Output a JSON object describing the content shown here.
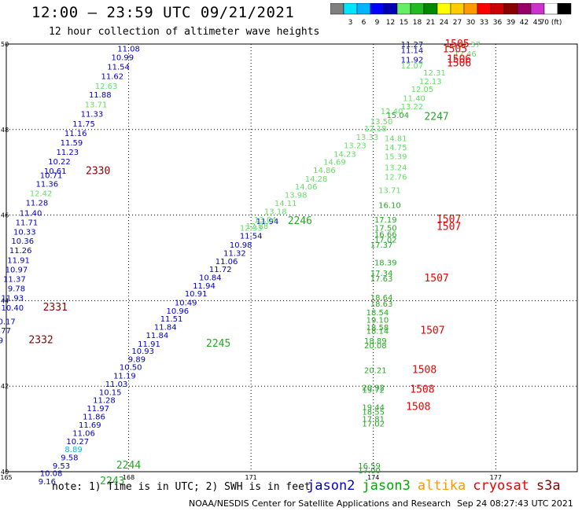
{
  "title": "12:00 – 23:59 UTC 09/21/2021",
  "subtitle": "12 hour collection of altimeter wave heights",
  "scale": {
    "colors": [
      "#7f7f7f",
      "#00e5ff",
      "#00b4ff",
      "#0000ff",
      "#0000b0",
      "#66ee66",
      "#22bb22",
      "#008800",
      "#ffff00",
      "#ffcc00",
      "#ff9900",
      "#ff0000",
      "#cc0000",
      "#880000",
      "#990066",
      "#cc33cc",
      "#ffffff",
      "#000000"
    ],
    "labels": [
      "3",
      "6",
      "9",
      "12",
      "15",
      "18",
      "21",
      "24",
      "27",
      "30",
      "33",
      "36",
      "39",
      "42",
      "45",
      "70 (ft)"
    ]
  },
  "map": {
    "lon_range": [
      165,
      179
    ],
    "lat_range": [
      40,
      50
    ],
    "lon_ticks": [
      "165",
      "168",
      "171",
      "174",
      "177"
    ],
    "lat_ticks": [
      "50",
      "48",
      "46",
      "44",
      "42",
      "40"
    ],
    "grid": "dotted"
  },
  "satellite_colors": {
    "jason2": "#0000cc",
    "jason3_light": "#66dd66",
    "jason3": "#22aa22",
    "jason3_dark": "#008800",
    "cryosat": "#ee0000",
    "s3a": "#880000",
    "cyan": "#00bbdd"
  },
  "observations": [
    {
      "text": "11.08",
      "lon": 168.0,
      "lat": 49.9,
      "c": "jason2"
    },
    {
      "text": "10.99",
      "lon": 167.85,
      "lat": 49.7,
      "c": "jason2"
    },
    {
      "text": "11.54",
      "lon": 167.75,
      "lat": 49.48,
      "c": "jason2"
    },
    {
      "text": "11.62",
      "lon": 167.6,
      "lat": 49.26,
      "c": "jason2"
    },
    {
      "text": "12.63",
      "lon": 167.45,
      "lat": 49.03,
      "c": "jason3_light"
    },
    {
      "text": "11.88",
      "lon": 167.3,
      "lat": 48.82,
      "c": "jason2"
    },
    {
      "text": "13.71",
      "lon": 167.2,
      "lat": 48.59,
      "c": "jason3_light"
    },
    {
      "text": "11.33",
      "lon": 167.1,
      "lat": 48.37,
      "c": "jason2"
    },
    {
      "text": "11.75",
      "lon": 166.9,
      "lat": 48.14,
      "c": "jason2"
    },
    {
      "text": "11.16",
      "lon": 166.7,
      "lat": 47.92,
      "c": "jason2"
    },
    {
      "text": "11.59",
      "lon": 166.6,
      "lat": 47.7,
      "c": "jason2"
    },
    {
      "text": "11.23",
      "lon": 166.5,
      "lat": 47.48,
      "c": "jason2"
    },
    {
      "text": "10.22",
      "lon": 166.3,
      "lat": 47.26,
      "c": "jason2"
    },
    {
      "text": "10.61",
      "lon": 166.2,
      "lat": 47.04,
      "c": "jason2"
    },
    {
      "text": "10.71",
      "lon": 166.1,
      "lat": 46.94,
      "c": "jason2"
    },
    {
      "text": "11.36",
      "lon": 166.0,
      "lat": 46.74,
      "c": "jason2"
    },
    {
      "text": "12.42",
      "lon": 165.85,
      "lat": 46.52,
      "c": "jason3_light"
    },
    {
      "text": "11.28",
      "lon": 165.75,
      "lat": 46.3,
      "c": "jason2"
    },
    {
      "text": "11.40",
      "lon": 165.6,
      "lat": 46.06,
      "c": "jason2"
    },
    {
      "text": "11.71",
      "lon": 165.5,
      "lat": 45.84,
      "c": "jason2"
    },
    {
      "text": "10.33",
      "lon": 165.45,
      "lat": 45.62,
      "c": "jason2"
    },
    {
      "text": "10.36",
      "lon": 165.4,
      "lat": 45.4,
      "c": "jason2"
    },
    {
      "text": "11.26",
      "lon": 165.35,
      "lat": 45.18,
      "c": "jason2"
    },
    {
      "text": "11.91",
      "lon": 165.3,
      "lat": 44.95,
      "c": "jason2"
    },
    {
      "text": "10.97",
      "lon": 165.25,
      "lat": 44.73,
      "c": "jason2"
    },
    {
      "text": "11.37",
      "lon": 165.2,
      "lat": 44.51,
      "c": "jason2"
    },
    {
      "text": "9.78",
      "lon": 165.25,
      "lat": 44.29,
      "c": "jason2"
    },
    {
      "text": "11.93",
      "lon": 165.15,
      "lat": 44.07,
      "c": "jason2"
    },
    {
      "text": "10.40",
      "lon": 165.15,
      "lat": 43.84,
      "c": "jason2"
    },
    {
      "text": "10.17",
      "lon": 164.95,
      "lat": 43.52,
      "c": "jason2"
    },
    {
      "text": "9.77",
      "lon": 164.9,
      "lat": 43.31,
      "c": "jason2"
    },
    {
      "text": "10.39",
      "lon": 164.65,
      "lat": 43.08,
      "c": "jason2"
    },
    {
      "text": "2330",
      "lon": 167.25,
      "lat": 47.03,
      "c": "s3a",
      "big": true
    },
    {
      "text": "2331",
      "lon": 166.2,
      "lat": 43.84,
      "c": "s3a",
      "big": true
    },
    {
      "text": "2332",
      "lon": 165.85,
      "lat": 43.08,
      "c": "s3a",
      "big": true
    },
    {
      "text": "11.94",
      "lon": 171.4,
      "lat": 45.86,
      "c": "jason2"
    },
    {
      "text": "12.33",
      "lon": 171.0,
      "lat": 45.71,
      "c": "jason3_light"
    },
    {
      "text": "11.54",
      "lon": 171.0,
      "lat": 45.52,
      "c": "jason2"
    },
    {
      "text": "10.98",
      "lon": 170.75,
      "lat": 45.31,
      "c": "jason2"
    },
    {
      "text": "11.32",
      "lon": 170.6,
      "lat": 45.12,
      "c": "jason2"
    },
    {
      "text": "11.06",
      "lon": 170.4,
      "lat": 44.93,
      "c": "jason2"
    },
    {
      "text": "11.72",
      "lon": 170.25,
      "lat": 44.74,
      "c": "jason2"
    },
    {
      "text": "10.84",
      "lon": 170.0,
      "lat": 44.55,
      "c": "jason2"
    },
    {
      "text": "11.94",
      "lon": 169.85,
      "lat": 44.36,
      "c": "jason2"
    },
    {
      "text": "10.91",
      "lon": 169.65,
      "lat": 44.17,
      "c": "jason2"
    },
    {
      "text": "10.49",
      "lon": 169.4,
      "lat": 43.96,
      "c": "jason2"
    },
    {
      "text": "10.96",
      "lon": 169.2,
      "lat": 43.77,
      "c": "jason2"
    },
    {
      "text": "11.51",
      "lon": 169.05,
      "lat": 43.58,
      "c": "jason2"
    },
    {
      "text": "11.84",
      "lon": 168.9,
      "lat": 43.39,
      "c": "jason2"
    },
    {
      "text": "11.84",
      "lon": 168.7,
      "lat": 43.2,
      "c": "jason2"
    },
    {
      "text": "11.91",
      "lon": 168.5,
      "lat": 43.0,
      "c": "jason2"
    },
    {
      "text": "10.93",
      "lon": 168.35,
      "lat": 42.83,
      "c": "jason2"
    },
    {
      "text": "9.89",
      "lon": 168.2,
      "lat": 42.64,
      "c": "jason2"
    },
    {
      "text": "10.50",
      "lon": 168.05,
      "lat": 42.45,
      "c": "jason2"
    },
    {
      "text": "11.19",
      "lon": 167.9,
      "lat": 42.25,
      "c": "jason2"
    },
    {
      "text": "11.03",
      "lon": 167.7,
      "lat": 42.06,
      "c": "jason2"
    },
    {
      "text": "10.15",
      "lon": 167.55,
      "lat": 41.87,
      "c": "jason2"
    },
    {
      "text": "11.28",
      "lon": 167.4,
      "lat": 41.68,
      "c": "jason2"
    },
    {
      "text": "11.97",
      "lon": 167.25,
      "lat": 41.49,
      "c": "jason2"
    },
    {
      "text": "11.86",
      "lon": 167.15,
      "lat": 41.3,
      "c": "jason2"
    },
    {
      "text": "11.69",
      "lon": 167.05,
      "lat": 41.1,
      "c": "jason2"
    },
    {
      "text": "11.06",
      "lon": 166.9,
      "lat": 40.91,
      "c": "jason2"
    },
    {
      "text": "10.27",
      "lon": 166.75,
      "lat": 40.72,
      "c": "jason2"
    },
    {
      "text": "8.89",
      "lon": 166.65,
      "lat": 40.53,
      "c": "cyan"
    },
    {
      "text": "9.58",
      "lon": 166.55,
      "lat": 40.34,
      "c": "jason2"
    },
    {
      "text": "9.53",
      "lon": 166.35,
      "lat": 40.15,
      "c": "jason2"
    },
    {
      "text": "10.08",
      "lon": 166.1,
      "lat": 39.97,
      "c": "jason2"
    },
    {
      "text": "9.16",
      "lon": 166.0,
      "lat": 39.78,
      "c": "jason2"
    },
    {
      "text": "2246",
      "lon": 172.2,
      "lat": 45.86,
      "c": "jason3",
      "big": true
    },
    {
      "text": "2245",
      "lon": 170.2,
      "lat": 43.0,
      "c": "jason3",
      "big": true
    },
    {
      "text": "2244",
      "lon": 168.0,
      "lat": 40.15,
      "c": "jason3",
      "big": true
    },
    {
      "text": "2243",
      "lon": 167.6,
      "lat": 39.78,
      "c": "jason3",
      "big": true
    },
    {
      "text": "11.27",
      "lon": 174.95,
      "lat": 50.0,
      "c": "jason2"
    },
    {
      "text": "11.14",
      "lon": 174.95,
      "lat": 49.86,
      "c": "jason2"
    },
    {
      "text": "11.92",
      "lon": 174.95,
      "lat": 49.64,
      "c": "jason2"
    },
    {
      "text": "12.37",
      "lon": 176.35,
      "lat": 50.0,
      "c": "jason3_light"
    },
    {
      "text": "12.46",
      "lon": 176.25,
      "lat": 49.78,
      "c": "jason3_light"
    },
    {
      "text": "12.07",
      "lon": 174.95,
      "lat": 49.5,
      "c": "jason3_light"
    },
    {
      "text": "12.31",
      "lon": 175.5,
      "lat": 49.34,
      "c": "jason3_light"
    },
    {
      "text": "12.13",
      "lon": 175.4,
      "lat": 49.14,
      "c": "jason3_light"
    },
    {
      "text": "12.05",
      "lon": 175.2,
      "lat": 48.95,
      "c": "jason3_light"
    },
    {
      "text": "11.40",
      "lon": 175.0,
      "lat": 48.74,
      "c": "jason3_light"
    },
    {
      "text": "13.22",
      "lon": 174.95,
      "lat": 48.55,
      "c": "jason3_light"
    },
    {
      "text": "12.40",
      "lon": 174.45,
      "lat": 48.44,
      "c": "jason3_light"
    },
    {
      "text": "15.04",
      "lon": 174.6,
      "lat": 48.35,
      "c": "jason3"
    },
    {
      "text": "13.50",
      "lon": 174.2,
      "lat": 48.2,
      "c": "jason3_light"
    },
    {
      "text": "12.18",
      "lon": 174.05,
      "lat": 48.03,
      "c": "jason3_light"
    },
    {
      "text": "13.33",
      "lon": 173.85,
      "lat": 47.83,
      "c": "jason3_light"
    },
    {
      "text": "13.23",
      "lon": 173.55,
      "lat": 47.64,
      "c": "jason3_light"
    },
    {
      "text": "14.23",
      "lon": 173.3,
      "lat": 47.44,
      "c": "jason3_light"
    },
    {
      "text": "14.69",
      "lon": 173.05,
      "lat": 47.25,
      "c": "jason3_light"
    },
    {
      "text": "14.86",
      "lon": 172.8,
      "lat": 47.06,
      "c": "jason3_light"
    },
    {
      "text": "14.28",
      "lon": 172.6,
      "lat": 46.86,
      "c": "jason3_light"
    },
    {
      "text": "14.06",
      "lon": 172.35,
      "lat": 46.67,
      "c": "jason3_light"
    },
    {
      "text": "13.98",
      "lon": 172.1,
      "lat": 46.48,
      "c": "jason3_light"
    },
    {
      "text": "14.11",
      "lon": 171.85,
      "lat": 46.29,
      "c": "jason3_light"
    },
    {
      "text": "13.18",
      "lon": 171.6,
      "lat": 46.09,
      "c": "jason3_light"
    },
    {
      "text": "13.04",
      "lon": 171.35,
      "lat": 45.9,
      "c": "jason3_light"
    },
    {
      "text": "12.88",
      "lon": 171.15,
      "lat": 45.75,
      "c": "jason3_light"
    },
    {
      "text": "14.81",
      "lon": 174.55,
      "lat": 47.8,
      "c": "jason3_light"
    },
    {
      "text": "14.75",
      "lon": 174.55,
      "lat": 47.59,
      "c": "jason3_light"
    },
    {
      "text": "15.39",
      "lon": 174.55,
      "lat": 47.38,
      "c": "jason3_light"
    },
    {
      "text": "13.24",
      "lon": 174.55,
      "lat": 47.12,
      "c": "jason3_light"
    },
    {
      "text": "12.76",
      "lon": 174.55,
      "lat": 46.9,
      "c": "jason3_light"
    },
    {
      "text": "13.71",
      "lon": 174.4,
      "lat": 46.59,
      "c": "jason3_light"
    },
    {
      "text": "16.10",
      "lon": 174.4,
      "lat": 46.24,
      "c": "jason3"
    },
    {
      "text": "17.19",
      "lon": 174.3,
      "lat": 45.9,
      "c": "jason3"
    },
    {
      "text": "17.50",
      "lon": 174.3,
      "lat": 45.71,
      "c": "jason3"
    },
    {
      "text": "16.66",
      "lon": 174.3,
      "lat": 45.56,
      "c": "jason3"
    },
    {
      "text": "17.02",
      "lon": 174.3,
      "lat": 45.43,
      "c": "jason3"
    },
    {
      "text": "17.37",
      "lon": 174.2,
      "lat": 45.31,
      "c": "jason3"
    },
    {
      "text": "18.39",
      "lon": 174.3,
      "lat": 44.9,
      "c": "jason3"
    },
    {
      "text": "17.34",
      "lon": 174.2,
      "lat": 44.65,
      "c": "jason3"
    },
    {
      "text": "17.63",
      "lon": 174.2,
      "lat": 44.52,
      "c": "jason3"
    },
    {
      "text": "18.64",
      "lon": 174.2,
      "lat": 44.08,
      "c": "jason3"
    },
    {
      "text": "18.63",
      "lon": 174.2,
      "lat": 43.93,
      "c": "jason3"
    },
    {
      "text": "18.54",
      "lon": 174.1,
      "lat": 43.73,
      "c": "jason3"
    },
    {
      "text": "19.10",
      "lon": 174.1,
      "lat": 43.56,
      "c": "jason3"
    },
    {
      "text": "18.58",
      "lon": 174.1,
      "lat": 43.38,
      "c": "jason3"
    },
    {
      "text": "18.14",
      "lon": 174.1,
      "lat": 43.3,
      "c": "jason3"
    },
    {
      "text": "18.89",
      "lon": 174.05,
      "lat": 43.07,
      "c": "jason3"
    },
    {
      "text": "20.08",
      "lon": 174.05,
      "lat": 42.96,
      "c": "jason3"
    },
    {
      "text": "20.21",
      "lon": 174.05,
      "lat": 42.38,
      "c": "jason3"
    },
    {
      "text": "20.92",
      "lon": 174.0,
      "lat": 41.98,
      "c": "jason3"
    },
    {
      "text": "19.72",
      "lon": 174.0,
      "lat": 41.92,
      "c": "jason3"
    },
    {
      "text": "19.44",
      "lon": 174.0,
      "lat": 41.52,
      "c": "jason3"
    },
    {
      "text": "18.55",
      "lon": 174.0,
      "lat": 41.41,
      "c": "jason3"
    },
    {
      "text": "17.81",
      "lon": 174.0,
      "lat": 41.24,
      "c": "jason3"
    },
    {
      "text": "17.02",
      "lon": 174.0,
      "lat": 41.13,
      "c": "jason3"
    },
    {
      "text": "16.59",
      "lon": 173.9,
      "lat": 40.15,
      "c": "jason3"
    },
    {
      "text": "17.00",
      "lon": 173.9,
      "lat": 40.04,
      "c": "jason3"
    },
    {
      "text": "2247",
      "lon": 175.55,
      "lat": 48.3,
      "c": "jason3",
      "big": true
    },
    {
      "text": "1505",
      "lon": 176.05,
      "lat": 50.0,
      "c": "cryosat",
      "big": true
    },
    {
      "text": "1505",
      "lon": 176.0,
      "lat": 49.88,
      "c": "cryosat",
      "big": true
    },
    {
      "text": "1506",
      "lon": 176.1,
      "lat": 49.64,
      "c": "cryosat",
      "big": true
    },
    {
      "text": "1506",
      "lon": 176.1,
      "lat": 49.55,
      "c": "cryosat",
      "big": true
    },
    {
      "text": "1507",
      "lon": 175.85,
      "lat": 45.9,
      "c": "cryosat",
      "big": true
    },
    {
      "text": "1507",
      "lon": 175.85,
      "lat": 45.73,
      "c": "cryosat",
      "big": true
    },
    {
      "text": "1507",
      "lon": 175.55,
      "lat": 44.52,
      "c": "cryosat",
      "big": true
    },
    {
      "text": "1507",
      "lon": 175.45,
      "lat": 43.3,
      "c": "cryosat",
      "big": true
    },
    {
      "text": "1508",
      "lon": 175.25,
      "lat": 42.38,
      "c": "cryosat",
      "big": true
    },
    {
      "text": "1508",
      "lon": 175.2,
      "lat": 41.92,
      "c": "cryosat",
      "big": true
    },
    {
      "text": "1508",
      "lon": 175.1,
      "lat": 41.52,
      "c": "cryosat",
      "big": true
    }
  ],
  "note": "note: 1) Time is in UTC; 2) SWH is in feet",
  "legend": [
    {
      "label": "jason2",
      "color": "#0000cc"
    },
    {
      "label": "jason3",
      "color": "#00aa00"
    },
    {
      "label": "altika",
      "color": "#ff9900"
    },
    {
      "label": "cryosat",
      "color": "#ee0000"
    },
    {
      "label": "s3a",
      "color": "#880000"
    }
  ],
  "credit": "NOAA/NESDIS Center for Satellite Applications and Research",
  "timestamp": "Sep 24 08:27:43 UTC 2021"
}
